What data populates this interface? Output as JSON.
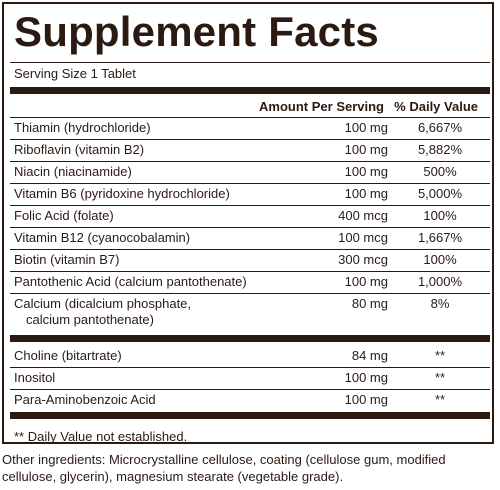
{
  "panel": {
    "title": "Supplement Facts",
    "serving_size": "Serving Size 1 Tablet",
    "columns": {
      "amount": "Amount Per Serving",
      "dv": "% Daily Value"
    },
    "rows": [
      {
        "name": "Thiamin (hydrochloride)",
        "amount": "100 mg",
        "dv": "6,667%"
      },
      {
        "name": "Riboflavin (vitamin B2)",
        "amount": "100 mg",
        "dv": "5,882%"
      },
      {
        "name": "Niacin (niacinamide)",
        "amount": "100 mg",
        "dv": "500%"
      },
      {
        "name": "Vitamin B6 (pyridoxine hydrochloride)",
        "amount": "100 mg",
        "dv": "5,000%"
      },
      {
        "name": "Folic Acid (folate)",
        "amount": "400 mcg",
        "dv": "100%"
      },
      {
        "name": "Vitamin B12 (cyanocobalamin)",
        "amount": "100 mcg",
        "dv": "1,667%"
      },
      {
        "name": "Biotin (vitamin B7)",
        "amount": "300 mcg",
        "dv": "100%"
      },
      {
        "name": "Pantothenic Acid (calcium pantothenate)",
        "amount": "100 mg",
        "dv": "1,000%"
      },
      {
        "name": "Calcium (dicalcium phosphate,",
        "name_line2": "calcium pantothenate)",
        "amount": "80 mg",
        "dv": "8%"
      }
    ],
    "other_rows": [
      {
        "name": "Choline (bitartrate)",
        "amount": "84 mg",
        "dv": "**"
      },
      {
        "name": "Inositol",
        "amount": "100 mg",
        "dv": "**"
      },
      {
        "name": "Para-Aminobenzoic Acid",
        "amount": "100 mg",
        "dv": "**"
      }
    ],
    "footnote": "** Daily Value not established."
  },
  "other_ingredients": "Other ingredients: Microcrystalline cellulose, coating (cellulose gum, modified cellulose, glycerin), magnesium stearate (vegetable grade)."
}
